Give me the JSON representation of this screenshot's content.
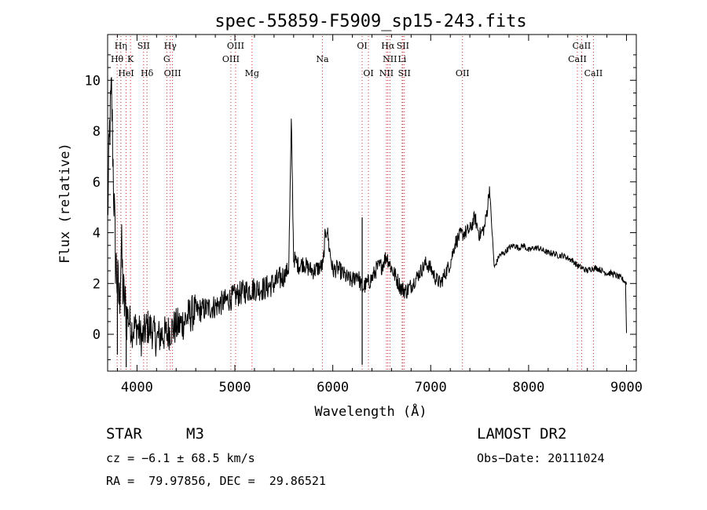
{
  "chart_data": {
    "type": "line",
    "title": "spec-55859-F5909_sp15-243.fits",
    "xlabel": "Wavelength (Å)",
    "ylabel": "Flux (relative)",
    "xlim": [
      3700,
      9100
    ],
    "ylim": [
      -1.45,
      11.8
    ],
    "xticks": [
      4000,
      5000,
      6000,
      7000,
      8000,
      9000
    ],
    "yticks": [
      0,
      2,
      4,
      6,
      8,
      10
    ],
    "grid": false,
    "line_color": "#000000",
    "marker_line_color": "#cc2222",
    "spectrum": {
      "x": [
        3700,
        3720,
        3740,
        3760,
        3780,
        3800,
        3820,
        3840,
        3860,
        3880,
        3900,
        3950,
        4000,
        4050,
        4100,
        4150,
        4200,
        4250,
        4300,
        4350,
        4400,
        4450,
        4500,
        4550,
        4600,
        4700,
        4800,
        4900,
        5000,
        5100,
        5200,
        5300,
        5400,
        5500,
        5550,
        5577,
        5600,
        5650,
        5700,
        5750,
        5800,
        5850,
        5900,
        5920,
        5940,
        5960,
        6000,
        6050,
        6100,
        6150,
        6200,
        6250,
        6300,
        6350,
        6400,
        6450,
        6500,
        6550,
        6600,
        6650,
        6700,
        6750,
        6800,
        6850,
        6900,
        6950,
        7000,
        7050,
        7100,
        7150,
        7200,
        7250,
        7300,
        7350,
        7400,
        7450,
        7500,
        7550,
        7580,
        7600,
        7620,
        7650,
        7700,
        7750,
        7800,
        7850,
        7900,
        7950,
        8000,
        8050,
        8100,
        8150,
        8200,
        8250,
        8300,
        8350,
        8400,
        8450,
        8500,
        8550,
        8600,
        8650,
        8700,
        8750,
        8800,
        8850,
        8900,
        8950,
        9000
      ],
      "y": [
        4.5,
        8.0,
        9.5,
        6.0,
        3.0,
        2.0,
        1.2,
        3.5,
        1.5,
        1.0,
        0.8,
        0.2,
        0.3,
        -0.2,
        0.3,
        0.2,
        -0.2,
        0.0,
        0.0,
        0.2,
        0.3,
        0.4,
        0.6,
        0.8,
        0.9,
        1.0,
        1.1,
        1.3,
        1.5,
        1.7,
        1.8,
        1.8,
        2.0,
        2.3,
        2.6,
        8.4,
        3.0,
        2.7,
        2.8,
        2.6,
        2.5,
        2.6,
        2.7,
        3.8,
        4.2,
        3.5,
        2.5,
        2.6,
        2.4,
        2.2,
        2.1,
        2.4,
        1.8,
        2.0,
        2.2,
        2.6,
        2.7,
        3.1,
        2.6,
        2.2,
        1.8,
        1.7,
        1.9,
        2.2,
        2.5,
        2.8,
        2.6,
        2.2,
        2.0,
        2.4,
        2.8,
        3.6,
        3.9,
        4.0,
        4.1,
        4.6,
        3.9,
        4.2,
        5.0,
        5.8,
        4.5,
        2.6,
        3.1,
        3.2,
        3.4,
        3.5,
        3.4,
        3.5,
        3.3,
        3.4,
        3.4,
        3.3,
        3.2,
        3.2,
        3.1,
        3.1,
        3.0,
        2.9,
        2.7,
        2.6,
        2.5,
        2.6,
        2.6,
        2.5,
        2.4,
        2.4,
        2.3,
        2.2,
        2.0
      ]
    },
    "spikes": [
      {
        "x": 5577,
        "y": 8.4
      },
      {
        "x": 6300,
        "y": 4.6
      },
      {
        "x": 6300,
        "y": -1.2
      },
      {
        "x": 3890,
        "y": -1.3
      },
      {
        "x": 3800,
        "y": -0.8
      }
    ],
    "lines": [
      {
        "label": "Hη",
        "wavelength": 3835,
        "row": 1
      },
      {
        "label": "Hθ",
        "wavelength": 3797,
        "row": 2
      },
      {
        "label": "K",
        "wavelength": 3934,
        "row": 2
      },
      {
        "label": "HeI",
        "wavelength": 3889,
        "row": 3
      },
      {
        "label": "SII",
        "wavelength": 4068,
        "row": 1
      },
      {
        "label": "Hδ",
        "wavelength": 4102,
        "row": 3
      },
      {
        "label": "Hγ",
        "wavelength": 4340,
        "row": 1
      },
      {
        "label": "G",
        "wavelength": 4304,
        "row": 2
      },
      {
        "label": "OIII",
        "wavelength": 4363,
        "row": 3
      },
      {
        "label": "OIII",
        "wavelength": 5007,
        "row": 1
      },
      {
        "label": "OIII",
        "wavelength": 4959,
        "row": 2
      },
      {
        "label": "Mg",
        "wavelength": 5175,
        "row": 3
      },
      {
        "label": "Na",
        "wavelength": 5894,
        "row": 2
      },
      {
        "label": "OI",
        "wavelength": 6300,
        "row": 1
      },
      {
        "label": "OI",
        "wavelength": 6364,
        "row": 3
      },
      {
        "label": "Hα",
        "wavelength": 6563,
        "row": 1
      },
      {
        "label": "SII",
        "wavelength": 6716,
        "row": 1
      },
      {
        "label": "NII",
        "wavelength": 6583,
        "row": 2
      },
      {
        "label": "Li",
        "wavelength": 6708,
        "row": 2
      },
      {
        "label": "NII",
        "wavelength": 6548,
        "row": 3
      },
      {
        "label": "SII",
        "wavelength": 6731,
        "row": 3
      },
      {
        "label": "OII",
        "wavelength": 7325,
        "row": 3
      },
      {
        "label": "CaII",
        "wavelength": 8542,
        "row": 1
      },
      {
        "label": "CaII",
        "wavelength": 8498,
        "row": 2
      },
      {
        "label": "CaII",
        "wavelength": 8662,
        "row": 3
      }
    ]
  },
  "info": {
    "object_class": "STAR",
    "subclass": "M3",
    "survey": "LAMOST DR2",
    "cz": "cz = −6.1 ± 68.5 km/s",
    "obs_date": "Obs−Date: 20111024",
    "coords": "RA =  79.97856, DEC =  29.86521"
  }
}
